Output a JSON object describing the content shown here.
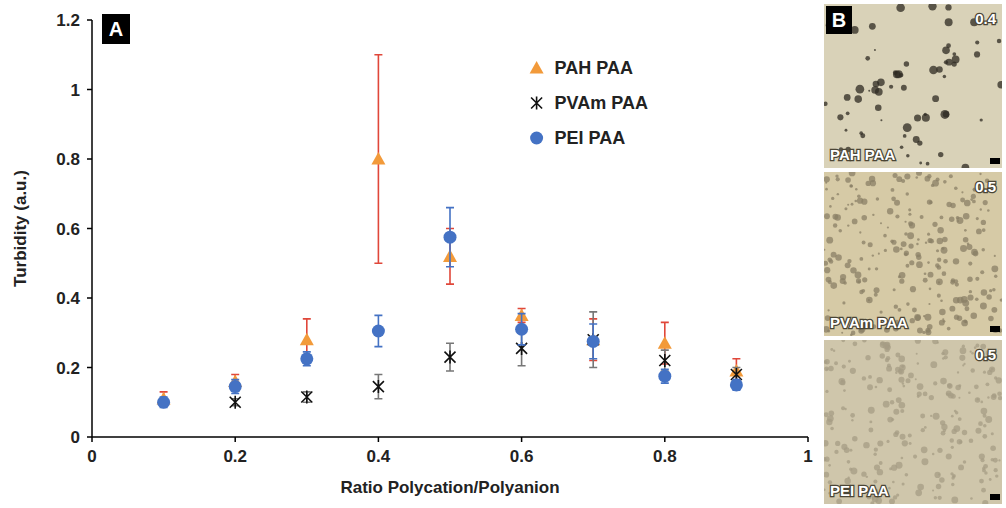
{
  "chart_data": {
    "type": "scatter",
    "panel": "A",
    "x_label": "Ratio Polycation/Polyanion",
    "y_label": "Turbidity (a.u.)",
    "x": [
      0.1,
      0.2,
      0.3,
      0.4,
      0.5,
      0.6,
      0.7,
      0.8,
      0.9
    ],
    "series": [
      {
        "name": "PAH PAA",
        "color": "#f29a3a",
        "marker": "triangle",
        "values": [
          0.11,
          0.16,
          0.28,
          0.8,
          0.52,
          0.35,
          0.28,
          0.27,
          0.19
        ],
        "errors": [
          0.02,
          0.02,
          0.06,
          0.3,
          0.08,
          0.02,
          0.06,
          0.06,
          0.035
        ]
      },
      {
        "name": "PVAm PAA",
        "color": "#111111",
        "marker": "x",
        "values": [
          null,
          0.1,
          0.115,
          0.145,
          0.23,
          0.255,
          0.28,
          0.22,
          0.18
        ],
        "errors": [
          null,
          0.01,
          0.015,
          0.035,
          0.04,
          0.05,
          0.08,
          0.03,
          0.02
        ]
      },
      {
        "name": "PEI PAA",
        "color": "#4472c4",
        "marker": "circle",
        "values": [
          0.1,
          0.145,
          0.225,
          0.305,
          0.575,
          0.31,
          0.275,
          0.175,
          0.15
        ],
        "errors": [
          0.015,
          0.02,
          0.02,
          0.045,
          0.085,
          0.045,
          0.05,
          0.02,
          0.015
        ]
      }
    ],
    "xlim": [
      0,
      1
    ],
    "xticks": [
      0,
      0.2,
      0.4,
      0.6,
      0.8,
      1
    ],
    "ylim": [
      0,
      1.2
    ],
    "yticks": [
      0,
      0.2,
      0.4,
      0.6,
      0.8,
      1,
      1.2
    ],
    "grid": false,
    "legend": "top-right"
  },
  "panel_b": {
    "panel": "B",
    "images": [
      {
        "label": "PAH PAA",
        "ratio": 0.4
      },
      {
        "label": "PVAm PAA",
        "ratio": 0.5
      },
      {
        "label": "PEI PAA",
        "ratio": 0.5
      }
    ]
  }
}
